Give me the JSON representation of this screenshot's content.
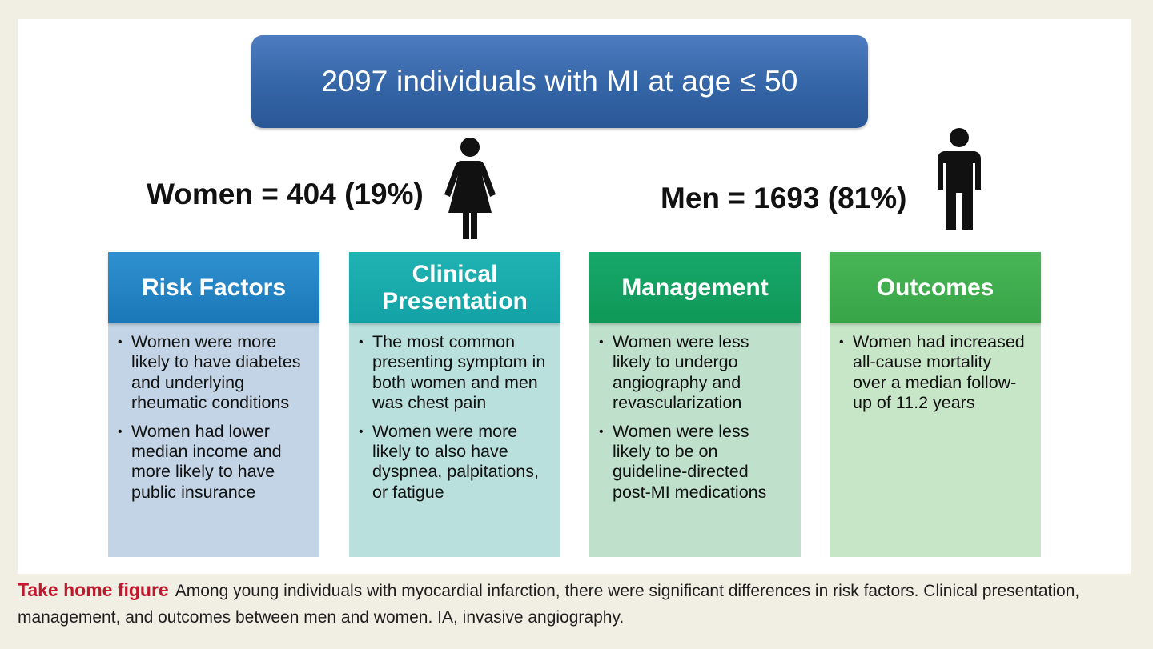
{
  "banner": {
    "text": "2097 individuals with MI at age ≤ 50"
  },
  "groups": {
    "women": {
      "label": "Women = 404 (19%)",
      "icon": "woman-icon"
    },
    "men": {
      "label": "Men = 1693 (81%)",
      "icon": "man-icon"
    }
  },
  "columns": [
    {
      "title": "Risk Factors",
      "color": "#1f80c2",
      "bullets": [
        "Women were more likely to have diabetes and underlying rheumatic conditions",
        "Women had lower median income and more likely to have public insurance"
      ]
    },
    {
      "title": "Clinical Presentation",
      "color": "#16a8a9",
      "bullets": [
        "The most common presenting symptom in both women and men was chest pain",
        "Women were more likely to also have dyspnea, palpitations, or fatigue"
      ]
    },
    {
      "title": "Management",
      "color": "#12a05f",
      "bullets": [
        "Women were less likely to undergo angiography and revascularization",
        "Women were less likely to be on guideline-directed post-MI medications"
      ]
    },
    {
      "title": "Outcomes",
      "color": "#40ad4e",
      "bullets": [
        "Women had increased all-cause mortality over a median follow-up of 11.2 years"
      ]
    }
  ],
  "caption": {
    "label": "Take home figure",
    "text": "Among young individuals with myocardial infarction, there were significant differences in risk factors. Clinical presentation, management, and outcomes between men and women. IA, invasive angiography."
  }
}
